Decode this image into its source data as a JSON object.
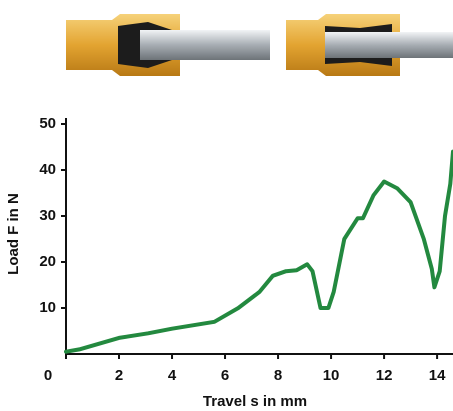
{
  "chart_data": {
    "type": "line",
    "x_label": "Travel s in mm",
    "y_label": "Load F in N",
    "x": [
      0,
      0.5,
      2,
      3.1,
      4,
      5.6,
      6.5,
      7.3,
      7.8,
      8.3,
      8.7,
      9.1,
      9.3,
      9.6,
      9.9,
      10.1,
      10.5,
      11,
      11.2,
      11.6,
      12,
      12.5,
      13,
      13.5,
      13.8,
      13.9,
      14.1,
      14.3,
      14.5,
      14.6
    ],
    "values": [
      0.5,
      1,
      3.5,
      4.5,
      5.5,
      7,
      10,
      13.5,
      17,
      18,
      18.2,
      19.5,
      18,
      10,
      10,
      13.5,
      25,
      29.5,
      29.5,
      34.5,
      37.5,
      36,
      33,
      25,
      18.5,
      14.5,
      18,
      30,
      37,
      44
    ],
    "color": "#23893f",
    "xlim": [
      0,
      14.6
    ],
    "ylim": [
      0,
      50
    ],
    "xticks": [
      0,
      2,
      4,
      6,
      8,
      10,
      12,
      14
    ],
    "yticks": [
      10,
      20,
      30,
      40,
      50
    ]
  }
}
